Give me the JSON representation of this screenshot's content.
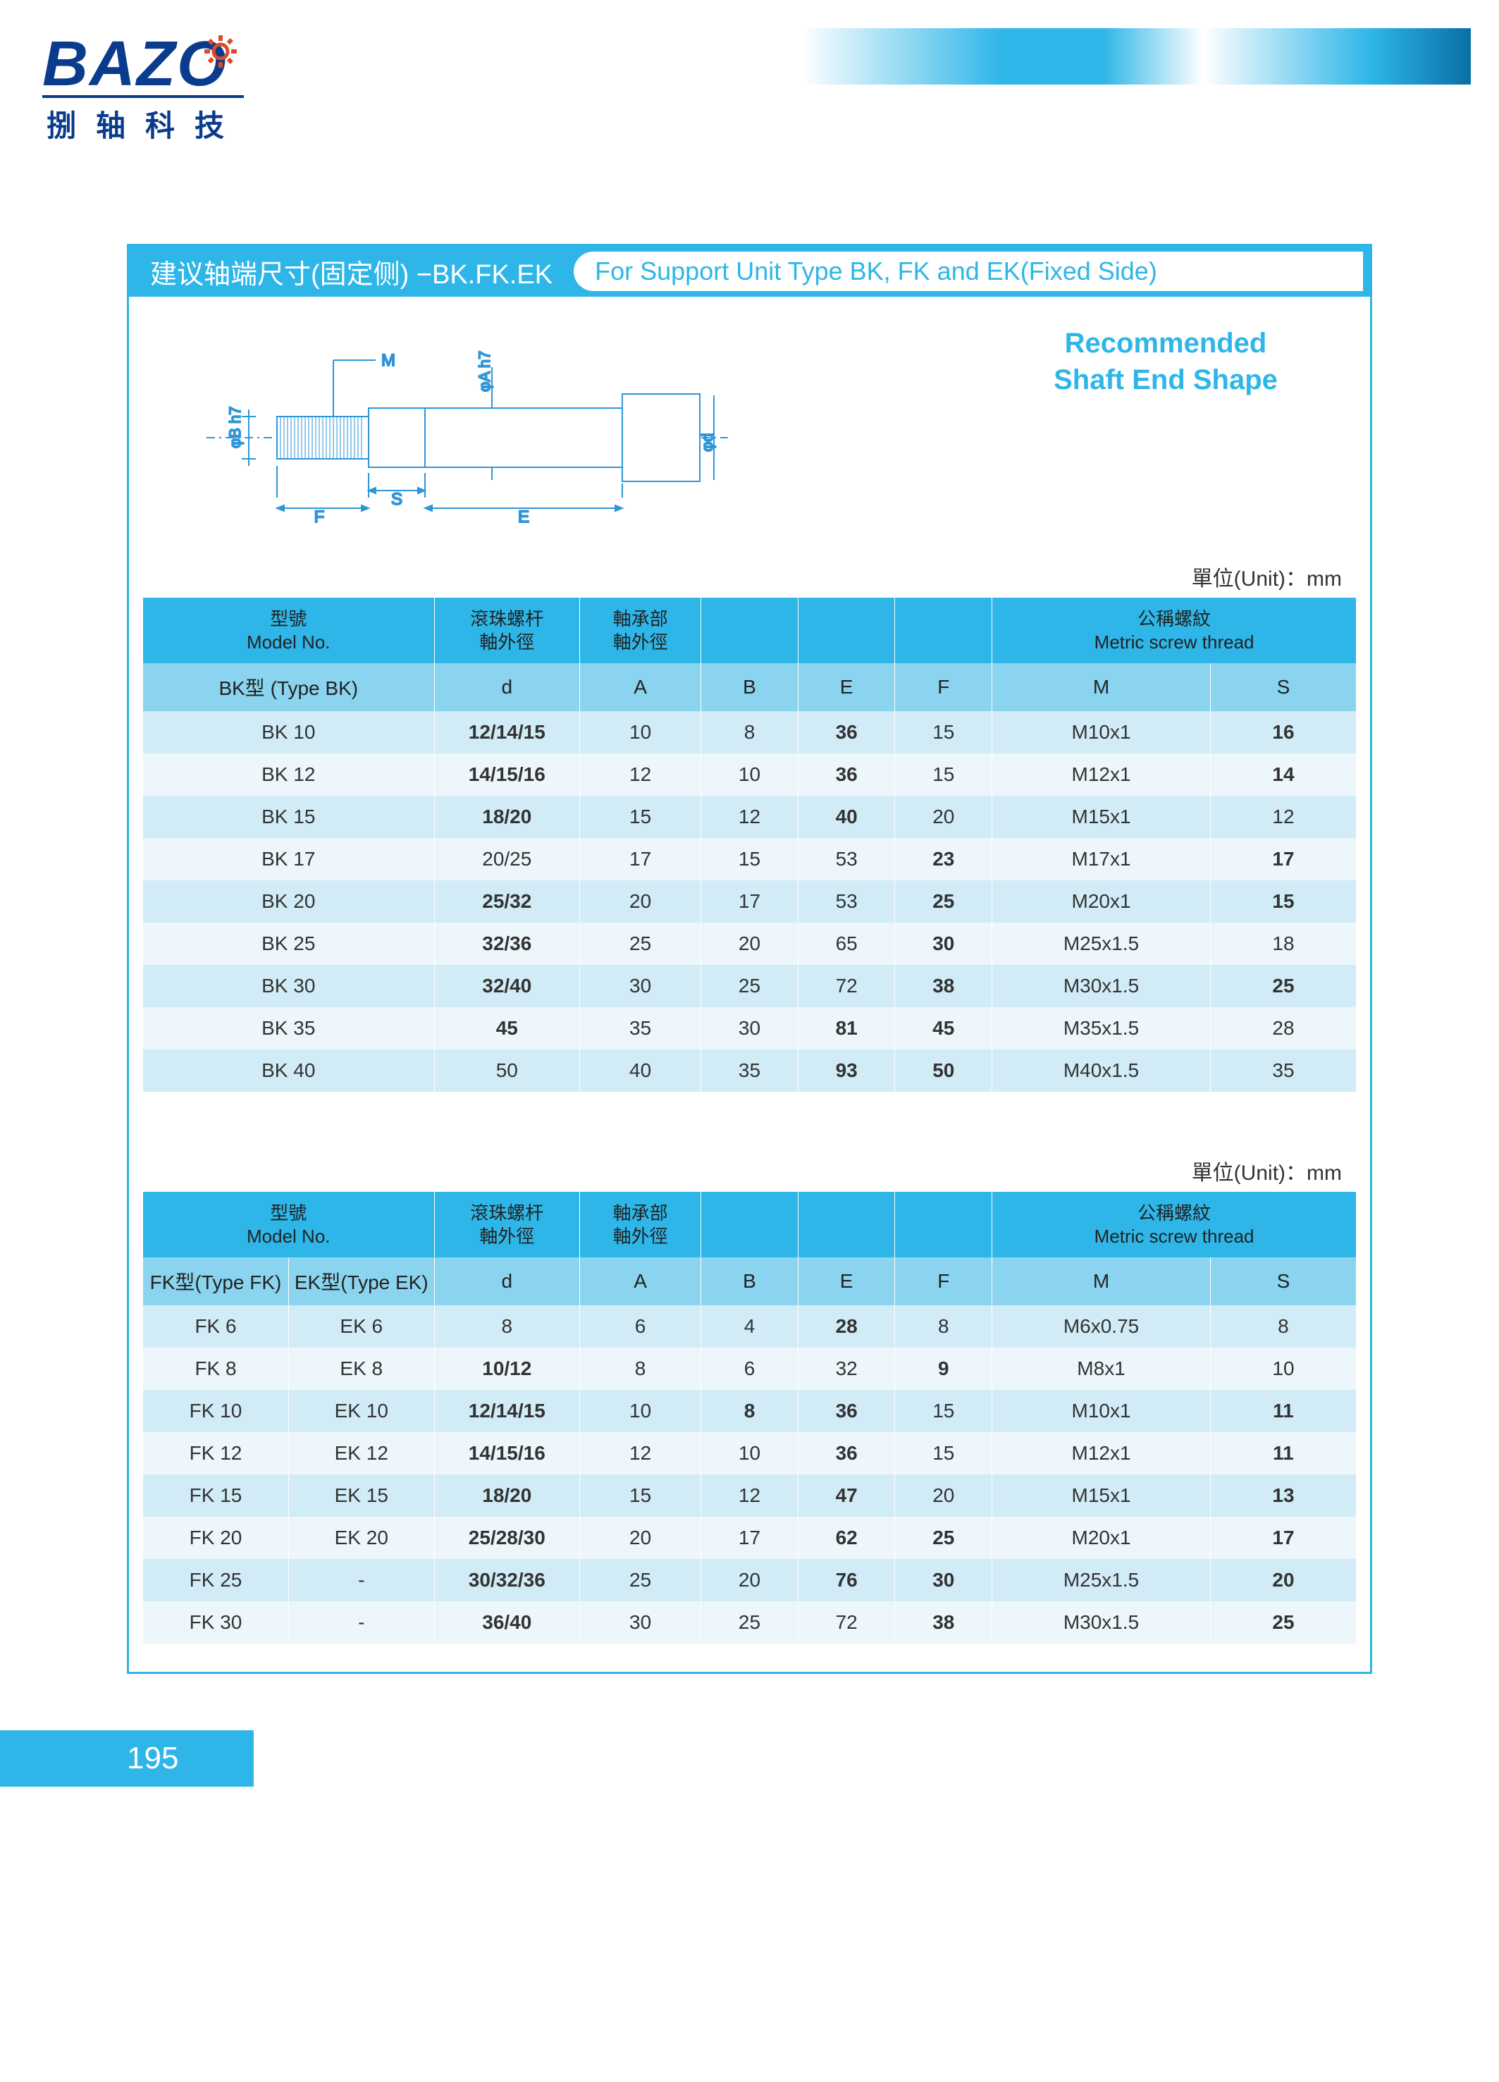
{
  "brand": {
    "logo_text": "BAZO",
    "logo_subtitle": "捌轴科技",
    "logo_color": "#0a3b8c",
    "gear_color": "#d94b2b"
  },
  "header_gradient_colors": [
    "#ffffff",
    "#2eb6e8",
    "#0a6fa5"
  ],
  "page_number": "195",
  "title": {
    "cn": "建议轴端尺寸(固定侧) −BK.FK.EK",
    "en": "For Support Unit Type BK, FK and EK(Fixed Side)"
  },
  "recommended_label_line1": "Recommended",
  "recommended_label_line2": "Shaft End Shape",
  "unit_label": "單位(Unit)：mm",
  "diagram": {
    "labels": {
      "M": "M",
      "phiB": "φB h7",
      "phiA": "φA h7",
      "phid": "φd",
      "F": "F",
      "S": "S",
      "E": "E"
    },
    "stroke_color": "#2e96d8",
    "fill_color": "#e8f5fb"
  },
  "table_bk": {
    "header_row1": {
      "model": "型號\nModel No.",
      "d": "滾珠螺杆\n軸外徑",
      "A": "軸承部\n軸外徑",
      "B": "",
      "E": "",
      "F": "",
      "thread": "公稱螺紋\nMetric screw thread"
    },
    "header_row2": {
      "model": "BK型 (Type BK)",
      "d": "d",
      "A": "A",
      "B": "B",
      "E": "E",
      "F": "F",
      "M": "M",
      "S": "S"
    },
    "rows": [
      {
        "model": "BK 10",
        "d": "12/14/15",
        "d_bold": true,
        "A": "10",
        "B": "8",
        "E": "36",
        "E_bold": true,
        "F": "15",
        "M": "M10x1",
        "S": "16",
        "S_bold": true
      },
      {
        "model": "BK 12",
        "d": "14/15/16",
        "d_bold": true,
        "A": "12",
        "B": "10",
        "E": "36",
        "E_bold": true,
        "F": "15",
        "M": "M12x1",
        "S": "14",
        "S_bold": true
      },
      {
        "model": "BK 15",
        "d": "18/20",
        "d_bold": true,
        "A": "15",
        "B": "12",
        "E": "40",
        "E_bold": true,
        "F": "20",
        "M": "M15x1",
        "S": "12"
      },
      {
        "model": "BK 17",
        "d": "20/25",
        "A": "17",
        "B": "15",
        "E": "53",
        "F": "23",
        "F_bold": true,
        "M": "M17x1",
        "S": "17",
        "S_bold": true
      },
      {
        "model": "BK 20",
        "d": "25/32",
        "d_bold": true,
        "A": "20",
        "B": "17",
        "E": "53",
        "F": "25",
        "F_bold": true,
        "M": "M20x1",
        "S": "15",
        "S_bold": true
      },
      {
        "model": "BK 25",
        "d": "32/36",
        "d_bold": true,
        "A": "25",
        "B": "20",
        "E": "65",
        "F": "30",
        "F_bold": true,
        "M": "M25x1.5",
        "S": "18"
      },
      {
        "model": "BK 30",
        "d": "32/40",
        "d_bold": true,
        "A": "30",
        "B": "25",
        "E": "72",
        "F": "38",
        "F_bold": true,
        "M": "M30x1.5",
        "S": "25",
        "S_bold": true
      },
      {
        "model": "BK 35",
        "d": "45",
        "d_bold": true,
        "A": "35",
        "B": "30",
        "E": "81",
        "E_bold": true,
        "F": "45",
        "F_bold": true,
        "M": "M35x1.5",
        "S": "28"
      },
      {
        "model": "BK 40",
        "d": "50",
        "A": "40",
        "B": "35",
        "E": "93",
        "E_bold": true,
        "F": "50",
        "F_bold": true,
        "M": "M40x1.5",
        "S": "35"
      }
    ],
    "col_widths": [
      "24%",
      "12%",
      "10%",
      "8%",
      "8%",
      "8%",
      "18%",
      "12%"
    ]
  },
  "table_fk": {
    "header_row1": {
      "model": "型號\nModel No.",
      "d": "滾珠螺杆\n軸外徑",
      "A": "軸承部\n軸外徑",
      "B": "",
      "E": "",
      "F": "",
      "thread": "公稱螺紋\nMetric screw thread"
    },
    "header_row2": {
      "fk": "FK型(Type FK)",
      "ek": "EK型(Type EK)",
      "d": "d",
      "A": "A",
      "B": "B",
      "E": "E",
      "F": "F",
      "M": "M",
      "S": "S"
    },
    "rows": [
      {
        "fk": "FK 6",
        "ek": "EK 6",
        "d": "8",
        "A": "6",
        "B": "4",
        "E": "28",
        "E_bold": true,
        "F": "8",
        "M": "M6x0.75",
        "S": "8"
      },
      {
        "fk": "FK 8",
        "ek": "EK 8",
        "d": "10/12",
        "d_bold": true,
        "A": "8",
        "B": "6",
        "E": "32",
        "F": "9",
        "F_bold": true,
        "M": "M8x1",
        "S": "10"
      },
      {
        "fk": "FK 10",
        "ek": "EK 10",
        "d": "12/14/15",
        "d_bold": true,
        "A": "10",
        "B": "8",
        "B_bold": true,
        "E": "36",
        "E_bold": true,
        "F": "15",
        "M": "M10x1",
        "S": "11",
        "S_bold": true
      },
      {
        "fk": "FK 12",
        "ek": "EK 12",
        "d": "14/15/16",
        "d_bold": true,
        "A": "12",
        "B": "10",
        "E": "36",
        "E_bold": true,
        "F": "15",
        "M": "M12x1",
        "S": "11",
        "S_bold": true
      },
      {
        "fk": "FK 15",
        "ek": "EK 15",
        "d": "18/20",
        "d_bold": true,
        "A": "15",
        "B": "12",
        "E": "47",
        "E_bold": true,
        "F": "20",
        "M": "M15x1",
        "S": "13",
        "S_bold": true
      },
      {
        "fk": "FK 20",
        "ek": "EK 20",
        "d": "25/28/30",
        "d_bold": true,
        "A": "20",
        "B": "17",
        "E": "62",
        "E_bold": true,
        "F": "25",
        "F_bold": true,
        "M": "M20x1",
        "S": "17",
        "S_bold": true
      },
      {
        "fk": "FK 25",
        "ek": "-",
        "d": "30/32/36",
        "d_bold": true,
        "A": "25",
        "B": "20",
        "E": "76",
        "E_bold": true,
        "F": "30",
        "F_bold": true,
        "M": "M25x1.5",
        "S": "20",
        "S_bold": true
      },
      {
        "fk": "FK 30",
        "ek": "-",
        "d": "36/40",
        "d_bold": true,
        "A": "30",
        "B": "25",
        "E": "72",
        "F": "38",
        "F_bold": true,
        "M": "M30x1.5",
        "S": "25",
        "S_bold": true
      }
    ],
    "col_widths": [
      "12%",
      "12%",
      "12%",
      "10%",
      "8%",
      "8%",
      "8%",
      "18%",
      "12%"
    ]
  },
  "colors": {
    "primary": "#2eb6e8",
    "header_bg": "#2eb6e8",
    "subheader_bg": "#8ad4ef",
    "row_odd": "#d1ecf7",
    "row_even": "#ecf6fb"
  }
}
